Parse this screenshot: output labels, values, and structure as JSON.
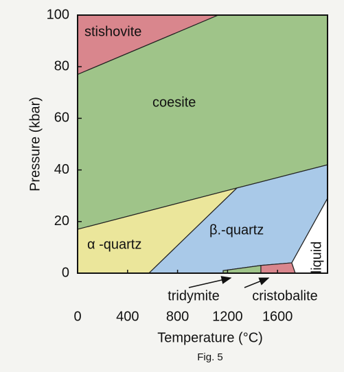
{
  "chart_data": {
    "type": "phase-diagram",
    "xlabel": "Temperature (°C)",
    "ylabel": "Pressure (kbar)",
    "caption": "Fig. 5",
    "xlim": [
      0,
      2000
    ],
    "ylim": [
      0,
      100
    ],
    "xticks": [
      0,
      400,
      800,
      1200,
      1600
    ],
    "yticks": [
      0,
      20,
      40,
      60,
      80,
      100
    ],
    "regions": [
      {
        "name": "stishovite",
        "color": "#d9868d",
        "x": [
          0,
          1126,
          0
        ],
        "y": [
          100,
          100,
          77
        ]
      },
      {
        "name": "coesite",
        "color": "#9fc489",
        "x": [
          0,
          1126,
          2000,
          2000,
          1275,
          0
        ],
        "y": [
          77,
          100,
          100,
          42,
          33,
          17
        ]
      },
      {
        "name": "α -quartz",
        "color": "#ebe69b",
        "x": [
          0,
          1275,
          571,
          0
        ],
        "y": [
          17,
          33,
          0,
          0
        ]
      },
      {
        "name": "β.-quartz",
        "color": "#a9c9e8",
        "x": [
          571,
          1165,
          1165,
          1467,
          1714,
          2000,
          2000,
          1275
        ],
        "y": [
          0,
          0,
          1,
          3,
          4,
          29,
          42,
          33
        ]
      },
      {
        "name": "tridymite",
        "color": "#9fc489",
        "x": [
          1165,
          1467,
          1467,
          1165
        ],
        "y": [
          0,
          0,
          3,
          1
        ]
      },
      {
        "name": "cristobalite",
        "color": "#d9868d",
        "x": [
          1467,
          1742,
          1714,
          1467
        ],
        "y": [
          0,
          0,
          4,
          3
        ]
      },
      {
        "name": "liquid",
        "color": "#ffffff",
        "x": [
          1742,
          2000,
          2000,
          1714
        ],
        "y": [
          0,
          0,
          29,
          4
        ]
      }
    ]
  }
}
